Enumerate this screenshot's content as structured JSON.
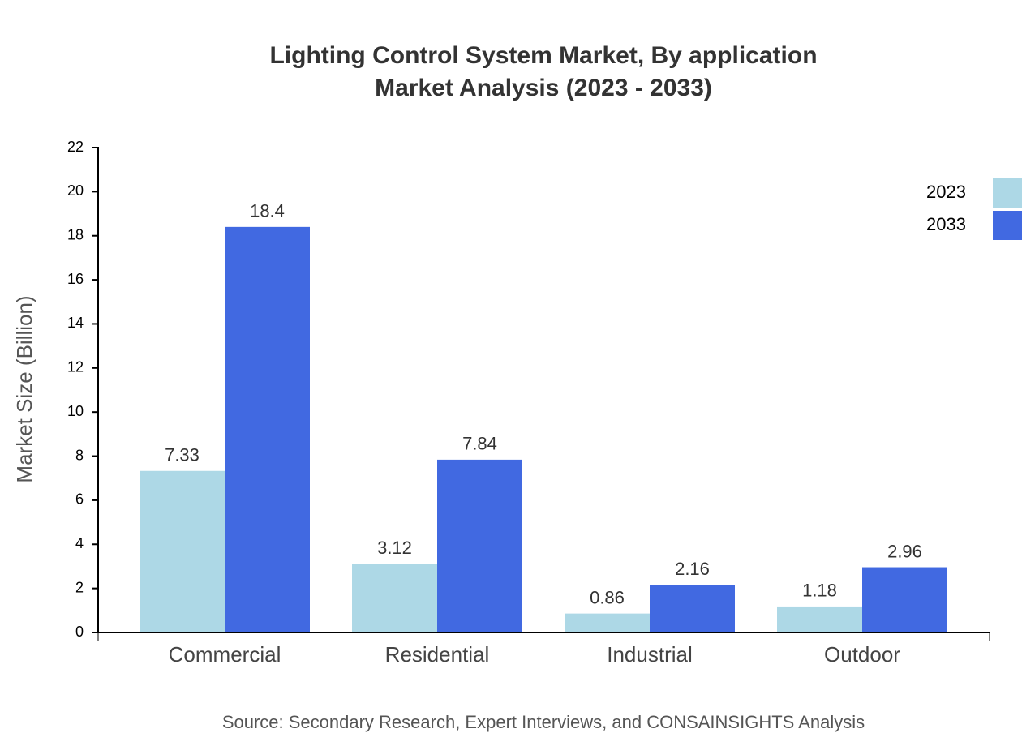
{
  "chart_data": {
    "type": "bar",
    "title": "Lighting Control System Market, By application",
    "subtitle": "Market Analysis (2023 - 2033)",
    "y_label": "Market Size (Billion)",
    "source": "Source: Secondary Research, Expert Interviews, and CONSAINSIGHTS Analysis",
    "categories": [
      "Commercial",
      "Residential",
      "Industrial",
      "Outdoor"
    ],
    "series": [
      {
        "name": "2023",
        "color": "#add8e6",
        "values": [
          7.33,
          3.12,
          0.86,
          1.18
        ]
      },
      {
        "name": "2033",
        "color": "#4169e1",
        "values": [
          18.4,
          7.84,
          2.16,
          2.96
        ]
      }
    ],
    "ylim": [
      0,
      22
    ],
    "yticks": [
      0,
      2,
      4,
      6,
      8,
      10,
      12,
      14,
      16,
      18,
      20,
      22
    ],
    "legend": "top-right"
  }
}
